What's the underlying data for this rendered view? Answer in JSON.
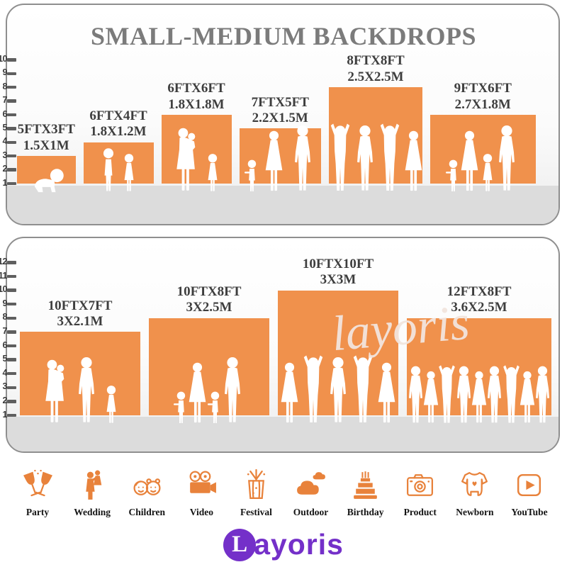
{
  "title": "SMALL-MEDIUM BACKDROPS",
  "watermark": "layoris",
  "colors": {
    "bar_orange": "#F0914C",
    "icon_orange": "#E8823B",
    "logo_purple": "#7430C9",
    "title_gray": "#7B7B7B",
    "label_dark": "#3E3E3E",
    "floor_gray": "#DCDCDC"
  },
  "panels": [
    {
      "id": "small-medium",
      "ruler": {
        "min": 1,
        "max": 10
      },
      "bars": [
        {
          "size_ft": "5FTX3FT",
          "size_m": "1.5X1M",
          "ft_w": 5,
          "ft_h": 3,
          "figures": [
            "baby"
          ]
        },
        {
          "size_ft": "6FTX4FT",
          "size_m": "1.8X1.2M",
          "ft_w": 6,
          "ft_h": 4,
          "figures": [
            "child",
            "girl"
          ]
        },
        {
          "size_ft": "6FTX6FT",
          "size_m": "1.8X1.8M",
          "ft_w": 6,
          "ft_h": 6,
          "figures": [
            "woman-baby",
            "girl"
          ]
        },
        {
          "size_ft": "7FTX5FT",
          "size_m": "2.2X1.5M",
          "ft_w": 7,
          "ft_h": 5,
          "figures": [
            "toddler",
            "woman",
            "man"
          ]
        },
        {
          "size_ft": "8FTX8FT",
          "size_m": "2.5X2.5M",
          "ft_w": 8,
          "ft_h": 8,
          "figures": [
            "man-up",
            "man",
            "man-up",
            "woman"
          ]
        },
        {
          "size_ft": "9FTX6FT",
          "size_m": "2.7X1.8M",
          "ft_w": 9,
          "ft_h": 6,
          "figures": [
            "toddler",
            "woman",
            "girl",
            "man"
          ]
        }
      ]
    },
    {
      "id": "large",
      "ruler": {
        "min": 1,
        "max": 12
      },
      "bars": [
        {
          "size_ft": "10FTX7FT",
          "size_m": "3X2.1M",
          "ft_w": 10,
          "ft_h": 7,
          "figures": [
            "woman-baby",
            "man",
            "girl"
          ]
        },
        {
          "size_ft": "10FTX8FT",
          "size_m": "3X2.5M",
          "ft_w": 10,
          "ft_h": 8,
          "figures": [
            "toddler",
            "woman",
            "toddler",
            "man"
          ]
        },
        {
          "size_ft": "10FTX10FT",
          "size_m": "3X3M",
          "ft_w": 10,
          "ft_h": 10,
          "figures": [
            "woman",
            "man-up",
            "man",
            "man-up",
            "woman"
          ]
        },
        {
          "size_ft": "12FTX8FT",
          "size_m": "3.6X2.5M",
          "ft_w": 12,
          "ft_h": 8,
          "figures": [
            "man",
            "woman",
            "man-up",
            "man",
            "woman",
            "man",
            "man-up",
            "woman",
            "man"
          ]
        }
      ]
    }
  ],
  "categories": [
    {
      "label": "Party",
      "icon": "party-icon"
    },
    {
      "label": "Wedding",
      "icon": "wedding-icon"
    },
    {
      "label": "Children",
      "icon": "children-icon"
    },
    {
      "label": "Video",
      "icon": "video-icon"
    },
    {
      "label": "Festival",
      "icon": "festival-icon"
    },
    {
      "label": "Outdoor",
      "icon": "outdoor-icon"
    },
    {
      "label": "Birthday",
      "icon": "birthday-icon"
    },
    {
      "label": "Product",
      "icon": "product-icon"
    },
    {
      "label": "Newborn",
      "icon": "newborn-icon"
    },
    {
      "label": "YouTube",
      "icon": "youtube-icon"
    }
  ],
  "logo": {
    "initial": "L",
    "text": "ayoris"
  }
}
